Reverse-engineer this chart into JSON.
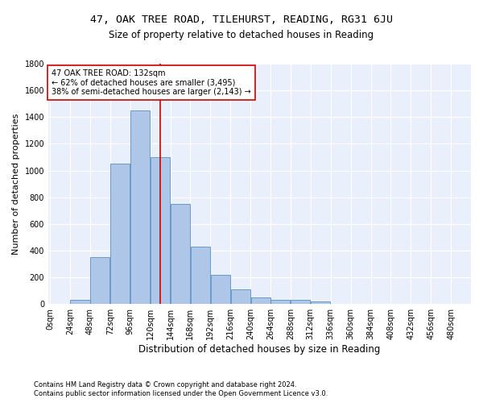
{
  "title": "47, OAK TREE ROAD, TILEHURST, READING, RG31 6JU",
  "subtitle": "Size of property relative to detached houses in Reading",
  "xlabel": "Distribution of detached houses by size in Reading",
  "ylabel": "Number of detached properties",
  "bin_labels": [
    "0sqm",
    "24sqm",
    "48sqm",
    "72sqm",
    "96sqm",
    "120sqm",
    "144sqm",
    "168sqm",
    "192sqm",
    "216sqm",
    "240sqm",
    "264sqm",
    "288sqm",
    "312sqm",
    "336sqm",
    "360sqm",
    "384sqm",
    "408sqm",
    "432sqm",
    "456sqm",
    "480sqm"
  ],
  "bin_edges": [
    0,
    24,
    48,
    72,
    96,
    120,
    144,
    168,
    192,
    216,
    240,
    264,
    288,
    312,
    336,
    360,
    384,
    408,
    432,
    456,
    480,
    504
  ],
  "bar_values": [
    5,
    30,
    350,
    1050,
    1450,
    1100,
    750,
    430,
    220,
    110,
    50,
    35,
    30,
    20,
    5,
    5,
    5,
    3,
    2,
    1,
    0
  ],
  "bar_color": "#aec6e8",
  "bar_edge_color": "#5a8fc0",
  "property_size": 132,
  "vline_color": "#cc0000",
  "annotation_text": "47 OAK TREE ROAD: 132sqm\n← 62% of detached houses are smaller (3,495)\n38% of semi-detached houses are larger (2,143) →",
  "annotation_box_color": "#ffffff",
  "annotation_box_edge": "#cc0000",
  "ylim": [
    0,
    1800
  ],
  "yticks": [
    0,
    200,
    400,
    600,
    800,
    1000,
    1200,
    1400,
    1600,
    1800
  ],
  "background_color": "#eaf0fb",
  "footnote1": "Contains HM Land Registry data © Crown copyright and database right 2024.",
  "footnote2": "Contains public sector information licensed under the Open Government Licence v3.0.",
  "title_fontsize": 9.5,
  "subtitle_fontsize": 8.5,
  "xlabel_fontsize": 8.5,
  "ylabel_fontsize": 8,
  "tick_fontsize": 7,
  "footnote_fontsize": 6,
  "annot_fontsize": 7
}
